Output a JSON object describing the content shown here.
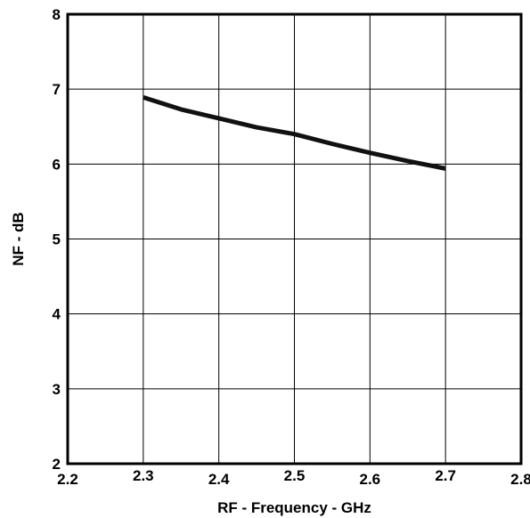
{
  "chart_data": {
    "type": "line",
    "title": "",
    "xlabel": "RF - Frequency - GHz",
    "ylabel": "NF - dB",
    "xlim": [
      2.2,
      2.8
    ],
    "ylim": [
      2,
      8
    ],
    "x_ticks": [
      "2.2",
      "2.3",
      "2.4",
      "2.5",
      "2.6",
      "2.7",
      "2.8"
    ],
    "y_ticks": [
      "2",
      "3",
      "4",
      "5",
      "6",
      "7",
      "8"
    ],
    "grid": true,
    "legend": "none",
    "series": [
      {
        "color": "#111111",
        "x": [
          2.3,
          2.35,
          2.4,
          2.45,
          2.5,
          2.55,
          2.6,
          2.65,
          2.7
        ],
        "y": [
          6.89,
          6.73,
          6.61,
          6.49,
          6.4,
          6.27,
          6.15,
          6.04,
          5.94
        ]
      }
    ]
  }
}
